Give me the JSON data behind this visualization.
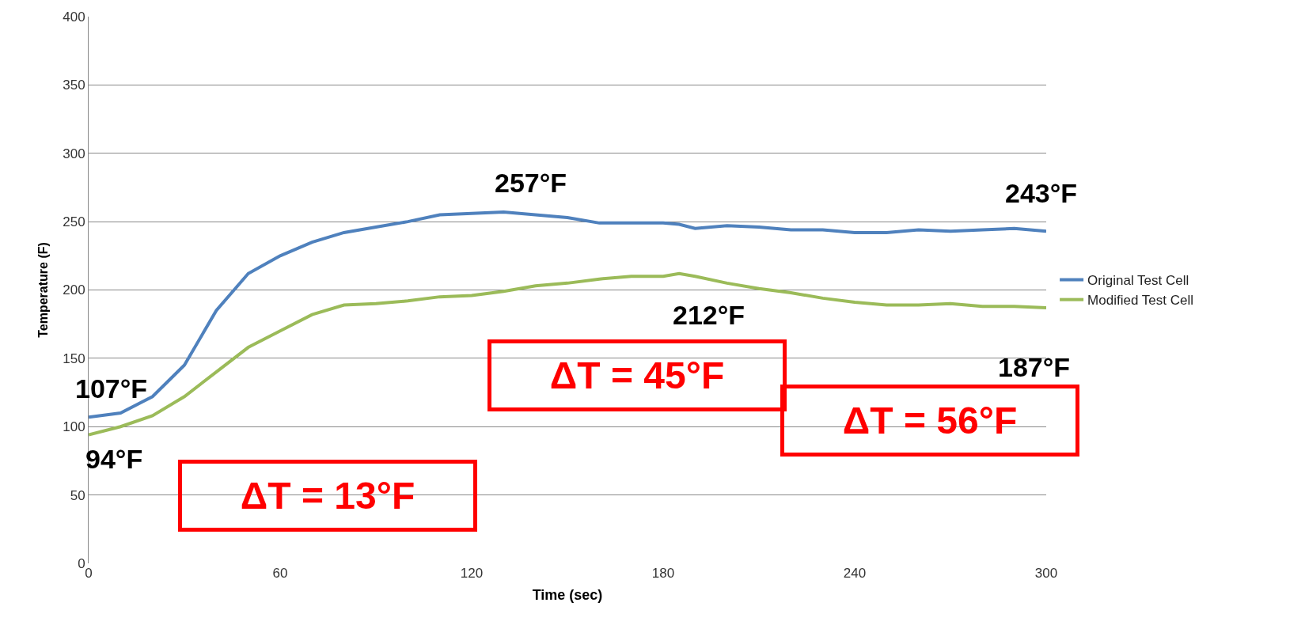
{
  "chart_data": {
    "type": "line",
    "xlabel": "Time (sec)",
    "ylabel": "Temperature (F)",
    "xlim": [
      0,
      300
    ],
    "xticks": [
      0,
      60,
      120,
      180,
      240,
      300
    ],
    "ylim": [
      0,
      400
    ],
    "yticks": [
      0,
      50,
      100,
      150,
      200,
      250,
      300,
      350,
      400
    ],
    "grid": "y",
    "legend": "right",
    "marker": "none",
    "line_style": "solid",
    "x": [
      0,
      10,
      20,
      30,
      40,
      50,
      60,
      70,
      80,
      90,
      100,
      110,
      120,
      130,
      140,
      150,
      160,
      170,
      180,
      185,
      190,
      200,
      210,
      220,
      230,
      240,
      250,
      260,
      270,
      280,
      290,
      300
    ],
    "series": [
      {
        "name": "Original Test Cell",
        "color": "#4f81bd",
        "values": [
          107,
          110,
          122,
          145,
          185,
          212,
          225,
          235,
          242,
          246,
          250,
          255,
          256,
          257,
          255,
          253,
          249,
          249,
          249,
          248,
          245,
          247,
          246,
          244,
          244,
          242,
          242,
          244,
          243,
          244,
          245,
          243
        ]
      },
      {
        "name": "Modified Test Cell",
        "color": "#9bbb59",
        "values": [
          94,
          100,
          108,
          122,
          140,
          158,
          170,
          182,
          189,
          190,
          192,
          195,
          196,
          199,
          203,
          205,
          208,
          210,
          210,
          212,
          210,
          205,
          201,
          198,
          194,
          191,
          189,
          189,
          190,
          188,
          188,
          187
        ]
      }
    ],
    "annotations": [
      {
        "text": "107°F",
        "x": 0,
        "y": 107
      },
      {
        "text": "94°F",
        "x": 0,
        "y": 94
      },
      {
        "text": "257°F",
        "x": 130,
        "y": 257
      },
      {
        "text": "243°F",
        "x": 300,
        "y": 243
      },
      {
        "text": "212°F",
        "x": 185,
        "y": 212
      },
      {
        "text": "187°F",
        "x": 300,
        "y": 187
      },
      "ΔT = 13°F",
      "ΔT = 45°F",
      "ΔT = 56°F"
    ]
  }
}
